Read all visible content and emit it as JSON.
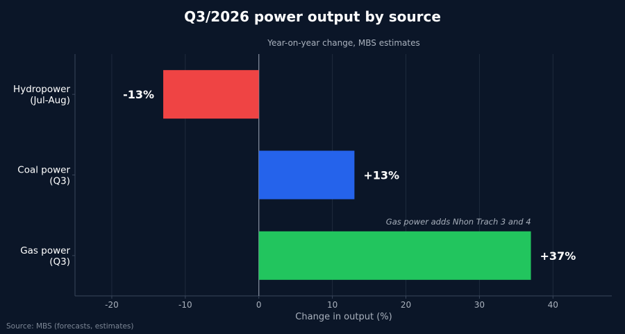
{
  "chart_data": {
    "type": "bar",
    "orientation": "horizontal",
    "title": "Q3/2026 power output by source",
    "subtitle": "Year-on-year change, MBS estimates",
    "xlabel": "Change in output (%)",
    "ylabel": "",
    "xlim": [
      -25,
      48
    ],
    "xticks": [
      -20,
      -10,
      0,
      10,
      20,
      30,
      40
    ],
    "grid": true,
    "categories": [
      [
        "Hydropower",
        "(Jul-Aug)"
      ],
      [
        "Coal power",
        "(Q3)"
      ],
      [
        "Gas power",
        "(Q3)"
      ]
    ],
    "values": [
      -13,
      13,
      37
    ],
    "value_labels": [
      "-13%",
      "+13%",
      "+37%"
    ],
    "colors": [
      "#ef4444",
      "#2563eb",
      "#22c55e"
    ],
    "annotation": "Gas power adds Nhon Trach 3 and 4",
    "source": "Source: MBS (forecasts, estimates)"
  },
  "colors": {
    "background": "#0b1628",
    "grid": "#1e2a3d",
    "axis": "#3a475c",
    "zero_line": "#8a93a3",
    "tick_text": "#a9b1bd",
    "muted_text": "#a9b1bd",
    "source_text": "#7d8796"
  }
}
